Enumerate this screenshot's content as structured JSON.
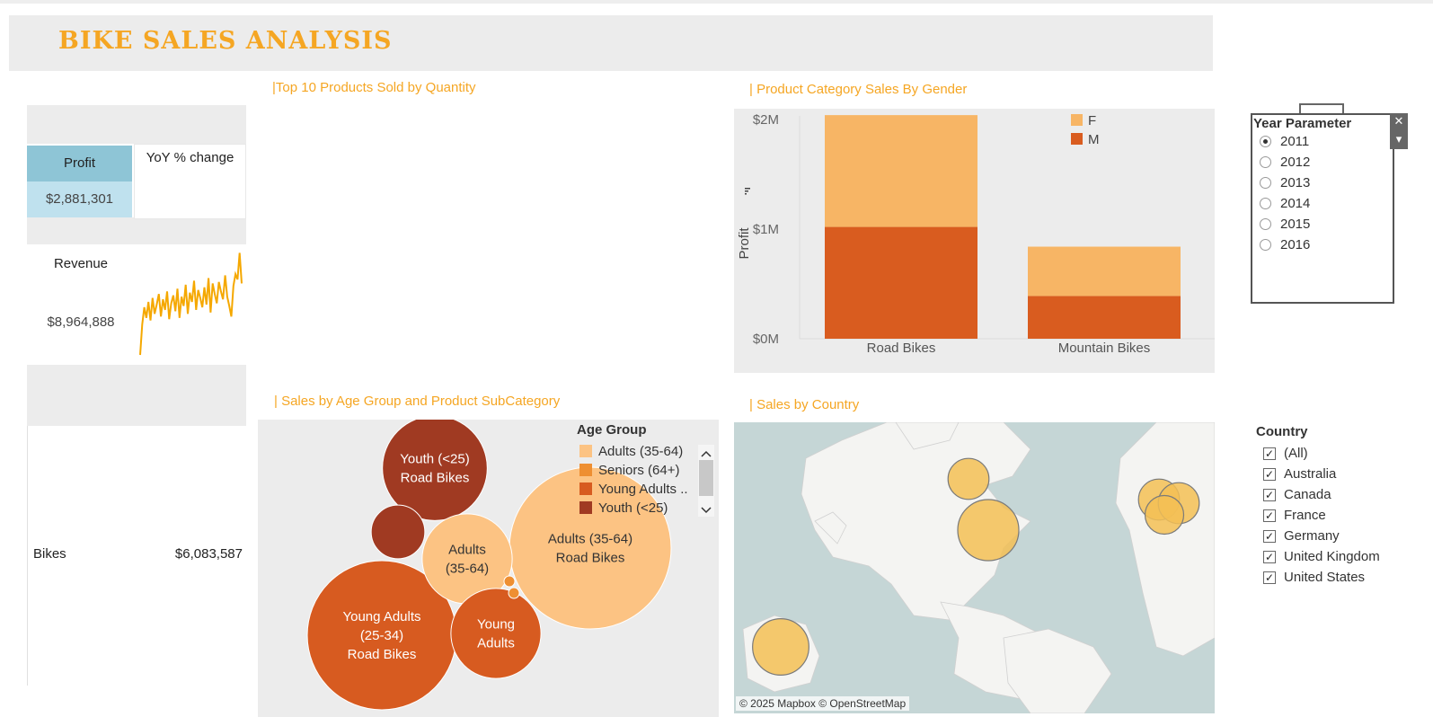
{
  "header": {
    "title": "BIKE SALES ANALYSIS"
  },
  "kpis": {
    "profit_label": "Profit",
    "profit_value": "$2,881,301",
    "yoy_label": "YoY % change",
    "revenue_label": "Revenue",
    "revenue_value": "$8,964,888",
    "bikes_label": "Bikes",
    "bikes_value": "$6,083,587"
  },
  "sections": {
    "top10": "|Top 10 Products Sold by Quantity",
    "gender": "| Product Category Sales By Gender",
    "age": "| Sales by Age Group and Product SubCategory",
    "country": "| Sales by Country"
  },
  "colors": {
    "accent": "#f5a623",
    "female": "#f7b565",
    "male": "#d95c1f",
    "adults": "#fcc383",
    "seniors": "#ee8f32",
    "young_adults": "#d75b20",
    "youth": "#a03a22",
    "map_bubble": "#f3bf55"
  },
  "chart_data": [
    {
      "type": "bar",
      "stacked": true,
      "title": "| Product Category Sales By Gender",
      "categories": [
        "Road Bikes",
        "Mountain Bikes"
      ],
      "series": [
        {
          "name": "M",
          "values": [
            1020000,
            390000
          ]
        },
        {
          "name": "F",
          "values": [
            1020000,
            450000
          ]
        }
      ],
      "ylabel": "Profit",
      "ylim": [
        0,
        2000000
      ],
      "yticks": [
        "$0M",
        "$1M",
        "$2M"
      ],
      "legend": "top-right",
      "grid": false
    },
    {
      "type": "scatter",
      "variant": "packed-bubble",
      "title": "| Sales by Age Group and Product SubCategory",
      "legend_title": "Age Group",
      "legend": [
        "Adults (35-64)",
        "Seniors (64+)",
        "Young Adults ..",
        "Youth (<25)"
      ],
      "bubbles": [
        {
          "label": "Adults (35-64)\nRoad Bikes",
          "group": "adults",
          "size": 1.0
        },
        {
          "label": "Young Adults\n(25-34)\nRoad Bikes",
          "group": "young_adults",
          "size": 0.85
        },
        {
          "label": "Youth (<25)\nRoad Bikes",
          "group": "youth",
          "size": 0.42
        },
        {
          "label": "Adults\n(35-64)",
          "group": "adults",
          "size": 0.31
        },
        {
          "label": "Young\nAdults",
          "group": "young_adults",
          "size": 0.31
        },
        {
          "label": "",
          "group": "youth",
          "size": 0.11
        },
        {
          "label": "",
          "group": "seniors",
          "size": 0.004
        },
        {
          "label": "",
          "group": "seniors",
          "size": 0.004
        }
      ]
    },
    {
      "type": "line",
      "title": "",
      "series": [
        {
          "name": "",
          "values": [
            2,
            25,
            38,
            30,
            42,
            28,
            45,
            33,
            40,
            48,
            31,
            44,
            36,
            50,
            29,
            41,
            47,
            35,
            52,
            30,
            46,
            39,
            55,
            33,
            49,
            42,
            58,
            36,
            51,
            45,
            38,
            53,
            40,
            60,
            34,
            56,
            48,
            41,
            57,
            50,
            44,
            62,
            46,
            39,
            31,
            54,
            63,
            59,
            79,
            56
          ]
        }
      ]
    }
  ],
  "map": {
    "credit": "© 2025 Mapbox © OpenStreetMap",
    "points": [
      {
        "name": "Canada",
        "size": 0.45
      },
      {
        "name": "United States",
        "size": 1.0
      },
      {
        "name": "United Kingdom",
        "size": 0.45
      },
      {
        "name": "Germany",
        "size": 0.45
      },
      {
        "name": "France",
        "size": 0.4
      },
      {
        "name": "Australia",
        "size": 0.85
      }
    ]
  },
  "year_filter": {
    "title": "Year Parameter",
    "options": [
      "2011",
      "2012",
      "2013",
      "2014",
      "2015",
      "2016"
    ],
    "selected": "2011"
  },
  "country_filter": {
    "title": "Country",
    "options": [
      "(All)",
      "Australia",
      "Canada",
      "France",
      "Germany",
      "United Kingdom",
      "United States"
    ]
  }
}
